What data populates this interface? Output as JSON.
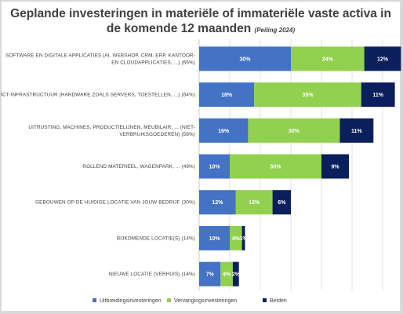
{
  "chart_data": {
    "type": "bar",
    "orientation": "horizontal",
    "stacked": true,
    "title_line1": "Geplande investeringen in materiële of immateriële vaste activa in",
    "title_line2": "de komende 12 maanden",
    "subtitle": "(Peiling 2024)",
    "categories": [
      "SOFTWARE EN DIGITALE APPLICATIES (AI, WEBSHOP, CRM, ERP, KANTOOR- EN CLOUDAPPLICATIES, ...) (66%)",
      "ICT-INFRASTRUCTUUR (HARDWARE ZOALS SERVERS, TOESTELLEN, ...) (64%)",
      "UITRUSTING, MACHINES, PRODUCTIELIJNEN, MEUBILAIR, ... (NIET-VERBRUIKSGOEDEREN) (58%)",
      "ROLLEND MATERIEEL, WAGENPARK, ... (49%)",
      "GEBOUWEN OP DE HUIDIGE LOCATIE VAN JOUW BEDRIJF (30%)",
      "BIJKOMENDE LOCATIE(S) (14%)",
      "NIEUWE LOCATIE (VERHUIS) (14%)"
    ],
    "category_lines": [
      [
        "SOFTWARE EN DIGITALE APPLICATIES (AI, WEBSHOP, CRM, ERP, KANTOOR-",
        "EN CLOUDAPPLICATIES, ...) (66%)"
      ],
      [
        "ICT-INFRASTRUCTUUR (HARDWARE ZOALS SERVERS, TOESTELLEN, ...) (64%)"
      ],
      [
        "UITRUSTING, MACHINES, PRODUCTIELIJNEN, MEUBILAIR, ... (NIET-",
        "VERBRUIKSGOEDEREN) (58%)"
      ],
      [
        "ROLLEND MATERIEEL, WAGENPARK, ... (49%)"
      ],
      [
        "GEBOUWEN OP DE HUIDIGE LOCATIE VAN JOUW BEDRIJF (30%)"
      ],
      [
        "BIJKOMENDE LOCATIE(S) (14%)"
      ],
      [
        "NIEUWE LOCATIE (VERHUIS) (14%)"
      ]
    ],
    "series": [
      {
        "name": "Uitbreidingsinvesteringen",
        "color": "#4472c4",
        "values": [
          30,
          18,
          16,
          10,
          12,
          10,
          7
        ]
      },
      {
        "name": "Vervangingsinvesteringen",
        "color": "#92d050",
        "values": [
          24,
          35,
          30,
          30,
          12,
          4,
          4
        ]
      },
      {
        "name": "Beiden",
        "color": "#0b1f5c",
        "values": [
          12,
          11,
          11,
          9,
          6,
          1,
          2
        ]
      }
    ],
    "xlim": [
      0,
      70
    ],
    "grid": true,
    "legend_position": "bottom"
  }
}
